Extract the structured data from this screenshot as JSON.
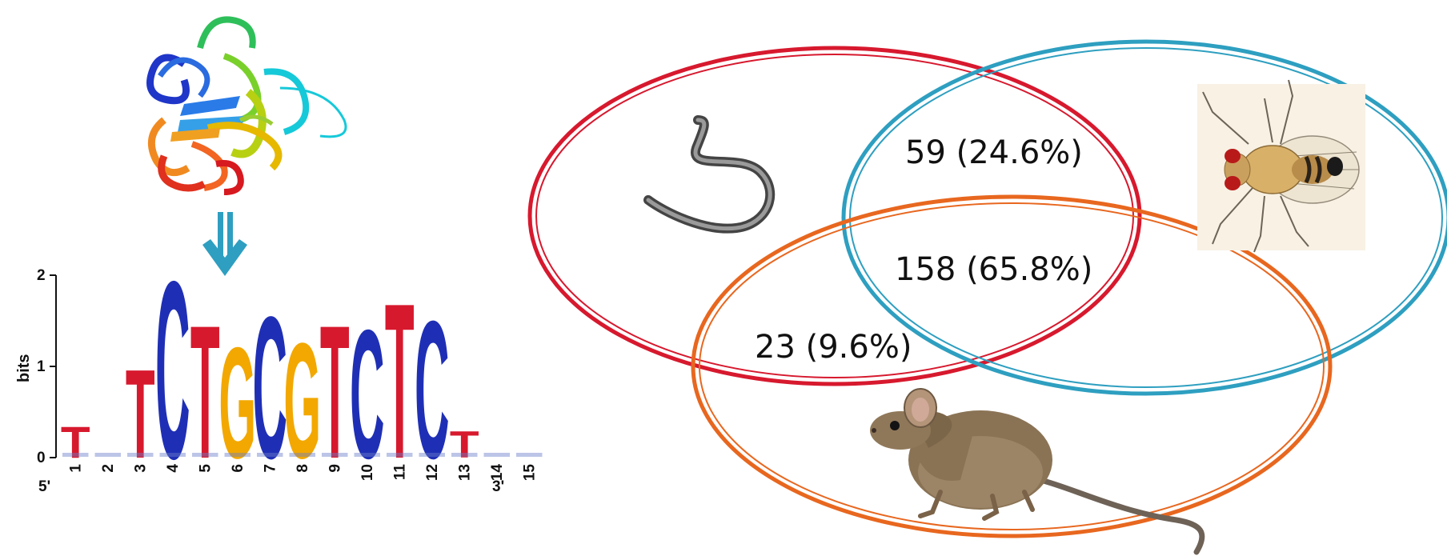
{
  "colors": {
    "red_circle": "#d7192e",
    "blue_circle": "#2e9fc0",
    "orange_circle": "#e8671f",
    "arrow": "#2e9fc0",
    "base_A": "#109648",
    "base_C": "#1f2fb5",
    "base_G": "#f2a800",
    "base_T": "#d7192e"
  },
  "logo": {
    "ylabel": "bits",
    "y_ticks": [
      "0",
      "1",
      "2"
    ],
    "positions": [
      "1",
      "2",
      "3",
      "4",
      "5",
      "6",
      "7",
      "8",
      "9",
      "10",
      "11",
      "12",
      "13",
      "14",
      "15"
    ],
    "end_5": "5'",
    "end_3": "3'",
    "consensus": [
      {
        "base": "T",
        "bits": 0.35
      },
      {
        "base": "",
        "bits": 0.05
      },
      {
        "base": "T",
        "bits": 1.0
      },
      {
        "base": "C",
        "bits": 2.0
      },
      {
        "base": "T",
        "bits": 1.5
      },
      {
        "base": "G",
        "bits": 1.25
      },
      {
        "base": "C",
        "bits": 1.6
      },
      {
        "base": "G",
        "bits": 1.3
      },
      {
        "base": "T",
        "bits": 1.5
      },
      {
        "base": "C",
        "bits": 1.45
      },
      {
        "base": "T",
        "bits": 1.75
      },
      {
        "base": "C",
        "bits": 1.55
      },
      {
        "base": "T",
        "bits": 0.3
      },
      {
        "base": "",
        "bits": 0.05
      },
      {
        "base": "",
        "bits": 0.03
      }
    ]
  },
  "venn": {
    "worm_fly_label": "59 (24.6%)",
    "all_three_label": "158 (65.8%)",
    "worm_mouse_label": "23 (9.6%)"
  },
  "icons": {
    "protein": "protein-structure-icon",
    "arrow": "arrow-down-icon",
    "worm": "worm-icon",
    "fly": "fruit-fly-icon",
    "mouse": "mouse-icon"
  }
}
